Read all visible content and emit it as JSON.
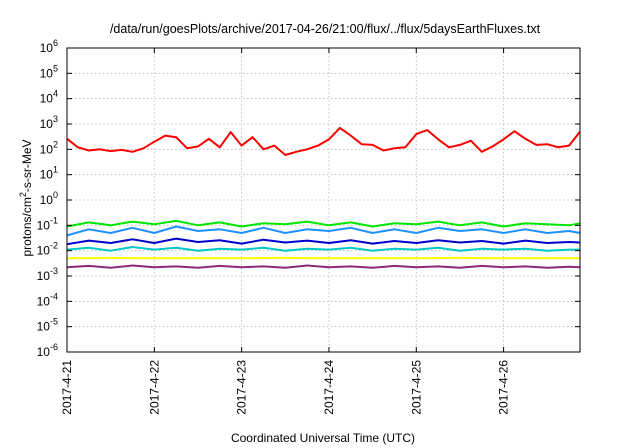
{
  "chart_data": {
    "type": "line",
    "title": "/data/run/goesPlots/archive/2017-04-26/21:00/flux/../flux/5daysEarthFluxes.txt",
    "xlabel": "Coordinated Universal Time (UTC)",
    "ylabel_parts": {
      "pre": "protons/cm",
      "sup": "2",
      "post": "-s-sr-MeV"
    },
    "yscale": "log",
    "ylim": [
      1e-06,
      1000000.0
    ],
    "xlim": [
      "2017-04-21T00:00",
      "2017-04-26T21:00"
    ],
    "grid": true,
    "y_ticks": [
      {
        "value": 1e-06,
        "base": "10",
        "exp": "-6"
      },
      {
        "value": 1e-05,
        "base": "10",
        "exp": "-5"
      },
      {
        "value": 0.0001,
        "base": "10",
        "exp": "-4"
      },
      {
        "value": 0.001,
        "base": "10",
        "exp": "-3"
      },
      {
        "value": 0.01,
        "base": "10",
        "exp": "-2"
      },
      {
        "value": 0.1,
        "base": "10",
        "exp": "-1"
      },
      {
        "value": 1.0,
        "base": "10",
        "exp": "0"
      },
      {
        "value": 10.0,
        "base": "10",
        "exp": "1"
      },
      {
        "value": 100.0,
        "base": "10",
        "exp": "2"
      },
      {
        "value": 1000.0,
        "base": "10",
        "exp": "3"
      },
      {
        "value": 10000.0,
        "base": "10",
        "exp": "4"
      },
      {
        "value": 100000.0,
        "base": "10",
        "exp": "5"
      },
      {
        "value": 1000000.0,
        "base": "10",
        "exp": "6"
      }
    ],
    "x_ticks": [
      {
        "value": "2017-04-21T00:00",
        "label": "2017-4-21"
      },
      {
        "value": "2017-04-22T00:00",
        "label": "2017-4-22"
      },
      {
        "value": "2017-04-23T00:00",
        "label": "2017-4-23"
      },
      {
        "value": "2017-04-24T00:00",
        "label": "2017-4-24"
      },
      {
        "value": "2017-04-25T00:00",
        "label": "2017-4-25"
      },
      {
        "value": "2017-04-26T00:00",
        "label": "2017-4-26"
      }
    ],
    "series": [
      {
        "color": "#ff0000",
        "x": [
          "2017-04-21T00:00",
          "2017-04-21T03:00",
          "2017-04-21T06:00",
          "2017-04-21T09:00",
          "2017-04-21T12:00",
          "2017-04-21T15:00",
          "2017-04-21T18:00",
          "2017-04-21T21:00",
          "2017-04-22T00:00",
          "2017-04-22T03:00",
          "2017-04-22T06:00",
          "2017-04-22T09:00",
          "2017-04-22T12:00",
          "2017-04-22T15:00",
          "2017-04-22T18:00",
          "2017-04-22T21:00",
          "2017-04-23T00:00",
          "2017-04-23T03:00",
          "2017-04-23T06:00",
          "2017-04-23T09:00",
          "2017-04-23T12:00",
          "2017-04-23T15:00",
          "2017-04-23T18:00",
          "2017-04-23T21:00",
          "2017-04-24T00:00",
          "2017-04-24T03:00",
          "2017-04-24T06:00",
          "2017-04-24T09:00",
          "2017-04-24T12:00",
          "2017-04-24T15:00",
          "2017-04-24T18:00",
          "2017-04-24T21:00",
          "2017-04-25T00:00",
          "2017-04-25T03:00",
          "2017-04-25T06:00",
          "2017-04-25T09:00",
          "2017-04-25T12:00",
          "2017-04-25T15:00",
          "2017-04-25T18:00",
          "2017-04-25T21:00",
          "2017-04-26T00:00",
          "2017-04-26T03:00",
          "2017-04-26T06:00",
          "2017-04-26T09:00",
          "2017-04-26T12:00",
          "2017-04-26T15:00",
          "2017-04-26T18:00",
          "2017-04-26T21:00"
        ],
        "y": [
          260,
          120,
          90,
          100,
          85,
          95,
          80,
          110,
          200,
          350,
          300,
          110,
          130,
          260,
          120,
          480,
          140,
          300,
          100,
          140,
          60,
          80,
          100,
          140,
          250,
          700,
          350,
          160,
          150,
          90,
          110,
          120,
          400,
          580,
          250,
          120,
          150,
          220,
          80,
          130,
          250,
          520,
          260,
          150,
          160,
          120,
          140,
          500
        ]
      },
      {
        "color": "#00e600",
        "x": [
          "2017-04-21T00:00",
          "2017-04-21T06:00",
          "2017-04-21T12:00",
          "2017-04-21T18:00",
          "2017-04-22T00:00",
          "2017-04-22T06:00",
          "2017-04-22T12:00",
          "2017-04-22T18:00",
          "2017-04-23T00:00",
          "2017-04-23T06:00",
          "2017-04-23T12:00",
          "2017-04-23T18:00",
          "2017-04-24T00:00",
          "2017-04-24T06:00",
          "2017-04-24T12:00",
          "2017-04-24T18:00",
          "2017-04-25T00:00",
          "2017-04-25T06:00",
          "2017-04-25T12:00",
          "2017-04-25T18:00",
          "2017-04-26T00:00",
          "2017-04-26T06:00",
          "2017-04-26T12:00",
          "2017-04-26T18:00",
          "2017-04-26T21:00"
        ],
        "y": [
          0.09,
          0.13,
          0.1,
          0.14,
          0.11,
          0.15,
          0.1,
          0.13,
          0.09,
          0.12,
          0.11,
          0.14,
          0.1,
          0.13,
          0.09,
          0.12,
          0.11,
          0.14,
          0.1,
          0.13,
          0.09,
          0.12,
          0.11,
          0.1,
          0.12
        ]
      },
      {
        "color": "#1e90ff",
        "x": [
          "2017-04-21T00:00",
          "2017-04-21T06:00",
          "2017-04-21T12:00",
          "2017-04-21T18:00",
          "2017-04-22T00:00",
          "2017-04-22T06:00",
          "2017-04-22T12:00",
          "2017-04-22T18:00",
          "2017-04-23T00:00",
          "2017-04-23T06:00",
          "2017-04-23T12:00",
          "2017-04-23T18:00",
          "2017-04-24T00:00",
          "2017-04-24T06:00",
          "2017-04-24T12:00",
          "2017-04-24T18:00",
          "2017-04-25T00:00",
          "2017-04-25T06:00",
          "2017-04-25T12:00",
          "2017-04-25T18:00",
          "2017-04-26T00:00",
          "2017-04-26T06:00",
          "2017-04-26T12:00",
          "2017-04-26T18:00",
          "2017-04-26T21:00"
        ],
        "y": [
          0.04,
          0.07,
          0.05,
          0.08,
          0.05,
          0.09,
          0.06,
          0.07,
          0.05,
          0.08,
          0.05,
          0.07,
          0.06,
          0.08,
          0.05,
          0.07,
          0.05,
          0.08,
          0.06,
          0.07,
          0.05,
          0.07,
          0.05,
          0.06,
          0.05
        ]
      },
      {
        "color": "#0000cd",
        "x": [
          "2017-04-21T00:00",
          "2017-04-21T06:00",
          "2017-04-21T12:00",
          "2017-04-21T18:00",
          "2017-04-22T00:00",
          "2017-04-22T06:00",
          "2017-04-22T12:00",
          "2017-04-22T18:00",
          "2017-04-23T00:00",
          "2017-04-23T06:00",
          "2017-04-23T12:00",
          "2017-04-23T18:00",
          "2017-04-24T00:00",
          "2017-04-24T06:00",
          "2017-04-24T12:00",
          "2017-04-24T18:00",
          "2017-04-25T00:00",
          "2017-04-25T06:00",
          "2017-04-25T12:00",
          "2017-04-25T18:00",
          "2017-04-26T00:00",
          "2017-04-26T06:00",
          "2017-04-26T12:00",
          "2017-04-26T18:00",
          "2017-04-26T21:00"
        ],
        "y": [
          0.018,
          0.025,
          0.02,
          0.028,
          0.02,
          0.03,
          0.022,
          0.026,
          0.019,
          0.027,
          0.021,
          0.025,
          0.02,
          0.026,
          0.019,
          0.024,
          0.02,
          0.026,
          0.021,
          0.024,
          0.019,
          0.025,
          0.02,
          0.022,
          0.021
        ]
      },
      {
        "color": "#00c8c8",
        "x": [
          "2017-04-21T00:00",
          "2017-04-21T06:00",
          "2017-04-21T12:00",
          "2017-04-21T18:00",
          "2017-04-22T00:00",
          "2017-04-22T06:00",
          "2017-04-22T12:00",
          "2017-04-22T18:00",
          "2017-04-23T00:00",
          "2017-04-23T06:00",
          "2017-04-23T12:00",
          "2017-04-23T18:00",
          "2017-04-24T00:00",
          "2017-04-24T06:00",
          "2017-04-24T12:00",
          "2017-04-24T18:00",
          "2017-04-25T00:00",
          "2017-04-25T06:00",
          "2017-04-25T12:00",
          "2017-04-25T18:00",
          "2017-04-26T00:00",
          "2017-04-26T06:00",
          "2017-04-26T12:00",
          "2017-04-26T18:00",
          "2017-04-26T21:00"
        ],
        "y": [
          0.011,
          0.013,
          0.01,
          0.014,
          0.011,
          0.013,
          0.01,
          0.012,
          0.011,
          0.013,
          0.01,
          0.012,
          0.011,
          0.013,
          0.01,
          0.012,
          0.011,
          0.013,
          0.01,
          0.012,
          0.011,
          0.012,
          0.01,
          0.011,
          0.011
        ]
      },
      {
        "color": "#ffff00",
        "x": [
          "2017-04-21T00:00",
          "2017-04-21T12:00",
          "2017-04-22T00:00",
          "2017-04-22T12:00",
          "2017-04-23T00:00",
          "2017-04-23T12:00",
          "2017-04-24T00:00",
          "2017-04-24T12:00",
          "2017-04-25T00:00",
          "2017-04-25T12:00",
          "2017-04-26T00:00",
          "2017-04-26T12:00",
          "2017-04-26T21:00"
        ],
        "y": [
          0.005,
          0.0052,
          0.005,
          0.0051,
          0.005,
          0.0052,
          0.005,
          0.0051,
          0.005,
          0.0052,
          0.005,
          0.0051,
          0.005
        ]
      },
      {
        "color": "#8b2a7a",
        "x": [
          "2017-04-21T00:00",
          "2017-04-21T06:00",
          "2017-04-21T12:00",
          "2017-04-21T18:00",
          "2017-04-22T00:00",
          "2017-04-22T06:00",
          "2017-04-22T12:00",
          "2017-04-22T18:00",
          "2017-04-23T00:00",
          "2017-04-23T06:00",
          "2017-04-23T12:00",
          "2017-04-23T18:00",
          "2017-04-24T00:00",
          "2017-04-24T06:00",
          "2017-04-24T12:00",
          "2017-04-24T18:00",
          "2017-04-25T00:00",
          "2017-04-25T06:00",
          "2017-04-25T12:00",
          "2017-04-25T18:00",
          "2017-04-26T00:00",
          "2017-04-26T06:00",
          "2017-04-26T12:00",
          "2017-04-26T18:00",
          "2017-04-26T21:00"
        ],
        "y": [
          0.0022,
          0.0025,
          0.0021,
          0.0026,
          0.0022,
          0.0024,
          0.0021,
          0.0025,
          0.0022,
          0.0024,
          0.0021,
          0.0026,
          0.0022,
          0.0024,
          0.0021,
          0.0025,
          0.0022,
          0.0024,
          0.0021,
          0.0025,
          0.0022,
          0.0024,
          0.0021,
          0.0023,
          0.0022
        ]
      }
    ]
  }
}
